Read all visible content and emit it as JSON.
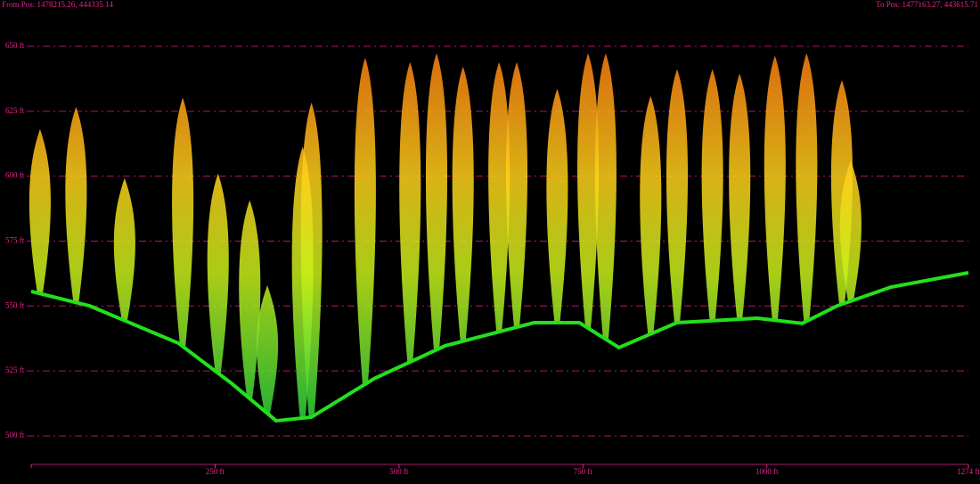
{
  "chart_data": {
    "type": "line",
    "from_label": "From Pos: 1478215.26, 444335.14",
    "to_label": "To Pos: 1477163.27, 443615.71",
    "xlim": [
      0,
      1274
    ],
    "xticks": [
      0,
      {
        "value": 250,
        "label": "250 ft"
      },
      {
        "value": 500,
        "label": "500 ft"
      },
      {
        "value": 750,
        "label": "750 ft"
      },
      {
        "value": 1000,
        "label": "1000 ft"
      },
      {
        "value": 1274,
        "label": "1274 ft"
      }
    ],
    "ylim": [
      489,
      665
    ],
    "yticks": [
      {
        "value": 500,
        "label": "500 ft"
      },
      {
        "value": 525,
        "label": "525 ft"
      },
      {
        "value": 550,
        "label": "550 ft"
      },
      {
        "value": 575,
        "label": "575 ft"
      },
      {
        "value": 600,
        "label": "600 ft"
      },
      {
        "value": 625,
        "label": "625 ft"
      },
      {
        "value": 650,
        "label": "650 ft"
      }
    ],
    "grid": true,
    "series": [
      {
        "type": "line",
        "color": "#22e01c",
        "x": [
          0,
          79,
          200,
          272,
          333,
          381,
          466,
          563,
          684,
          745,
          799,
          878,
          987,
          1048,
          1096,
          1169,
          1274
        ],
        "values": [
          555.6,
          550.1,
          535.7,
          520.3,
          505.8,
          507.2,
          522.0,
          534.7,
          543.6,
          543.6,
          534.0,
          543.6,
          545.3,
          543.3,
          550.1,
          557.3,
          562.8
        ]
      },
      {
        "type": "tree",
        "color": "#ff8c1a",
        "x": [
          12,
          61,
          127,
          206,
          254,
          297,
          321,
          369,
          381,
          454,
          515,
          551,
          587,
          636,
          660,
          715,
          757,
          781,
          842,
          878,
          926,
          963,
          1011,
          1054,
          1102,
          1114
        ],
        "values": [
          618.1,
          626.7,
          599.3,
          630.2,
          601.0,
          590.7,
          558.0,
          611.3,
          628.3,
          645.6,
          643.9,
          647.3,
          642.2,
          643.9,
          643.9,
          633.6,
          647.3,
          647.3,
          630.9,
          641.2,
          641.2,
          639.5,
          646.4,
          647.3,
          637.0,
          606.1
        ]
      }
    ]
  }
}
